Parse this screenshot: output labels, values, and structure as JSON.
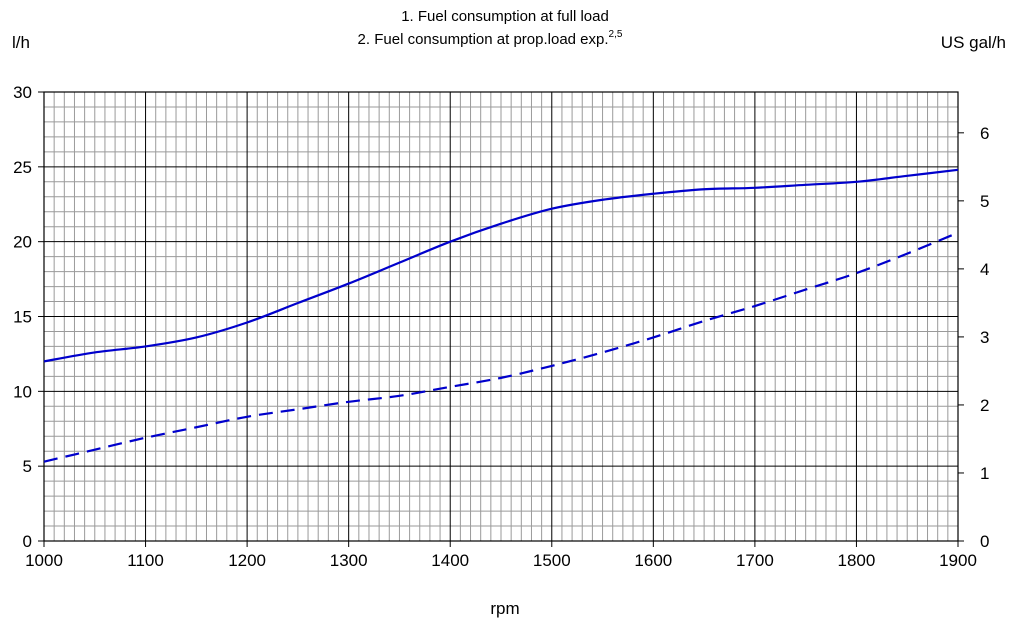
{
  "chart_data": {
    "type": "line",
    "title_lines": [
      "1. Fuel consumption at full load",
      "2. Fuel consumption at prop.load exp."
    ],
    "title_superscript": "2,5",
    "left_unit": "l/h",
    "right_unit": "US gal/h",
    "xlabel": "rpm",
    "xlim": [
      1000,
      1900
    ],
    "ylim": [
      0,
      30
    ],
    "y2lim": [
      0,
      6.6
    ],
    "x_ticks": [
      "1000",
      "1100",
      "1200",
      "1300",
      "1400",
      "1500",
      "1600",
      "1700",
      "1800",
      "1900"
    ],
    "y_ticks": [
      "0",
      "5",
      "10",
      "15",
      "20",
      "25",
      "30"
    ],
    "y2_ticks": [
      "0",
      "1",
      "2",
      "3",
      "4",
      "5",
      "6"
    ],
    "grid": true,
    "color": "#0000CC",
    "series": [
      {
        "style": "solid",
        "x": [
          1000,
          1050,
          1100,
          1150,
          1200,
          1250,
          1300,
          1350,
          1400,
          1450,
          1500,
          1550,
          1600,
          1650,
          1700,
          1750,
          1800,
          1850,
          1900
        ],
        "y": [
          12.0,
          12.6,
          13.0,
          13.6,
          14.6,
          15.9,
          17.2,
          18.6,
          20.0,
          21.2,
          22.2,
          22.8,
          23.2,
          23.5,
          23.6,
          23.8,
          24.0,
          24.4,
          24.8
        ]
      },
      {
        "style": "dashed",
        "x": [
          1000,
          1050,
          1100,
          1150,
          1200,
          1250,
          1300,
          1350,
          1400,
          1450,
          1500,
          1550,
          1600,
          1650,
          1700,
          1750,
          1800,
          1850,
          1900
        ],
        "y": [
          5.3,
          6.1,
          6.9,
          7.6,
          8.3,
          8.8,
          9.3,
          9.7,
          10.3,
          10.9,
          11.7,
          12.6,
          13.6,
          14.7,
          15.7,
          16.8,
          17.9,
          19.2,
          20.6
        ]
      }
    ]
  }
}
